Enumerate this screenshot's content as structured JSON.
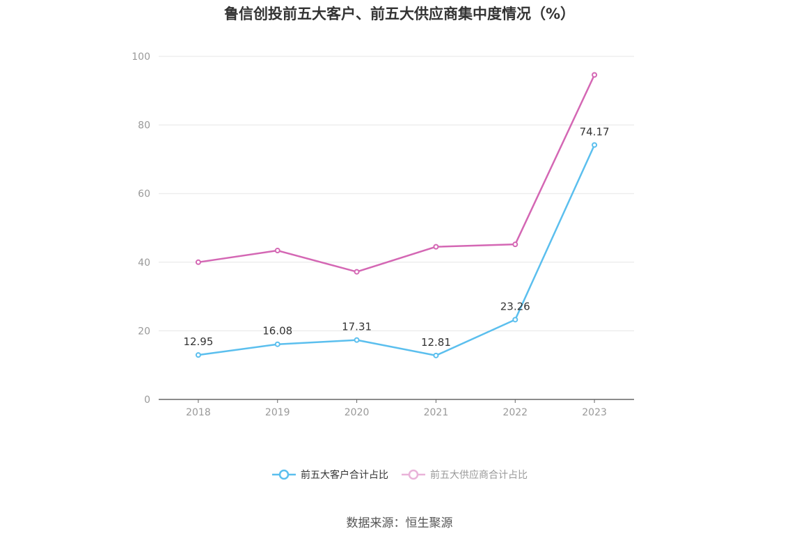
{
  "title": "鲁信创投前五大客户、前五大供应商集中度情况（%）",
  "source": "数据来源：恒生聚源",
  "colors": {
    "series1": "#5bbfee",
    "series2": "#d467b4",
    "grid": "#e6e6e6",
    "axis": "#666666",
    "tick_text": "#999999",
    "label_text": "#333333"
  },
  "chart_data": {
    "type": "line",
    "title": "鲁信创投前五大客户、前五大供应商集中度情况（%）",
    "xlabel": "",
    "ylabel": "",
    "categories": [
      "2018",
      "2019",
      "2020",
      "2021",
      "2022",
      "2023"
    ],
    "y_ticks": [
      "0",
      "20",
      "40",
      "60",
      "80",
      "100"
    ],
    "ylim": [
      0,
      100
    ],
    "grid": true,
    "legend_position": "bottom",
    "series": [
      {
        "name": "前五大客户合计占比",
        "values": [
          12.95,
          16.08,
          17.31,
          12.81,
          23.26,
          74.17
        ],
        "labels": [
          "12.95",
          "16.08",
          "17.31",
          "12.81",
          "23.26",
          "74.17"
        ],
        "show_labels": true
      },
      {
        "name": "前五大供应商合计占比",
        "values": [
          40.0,
          43.4,
          37.2,
          44.5,
          45.2,
          94.6
        ],
        "show_labels": false
      }
    ]
  }
}
